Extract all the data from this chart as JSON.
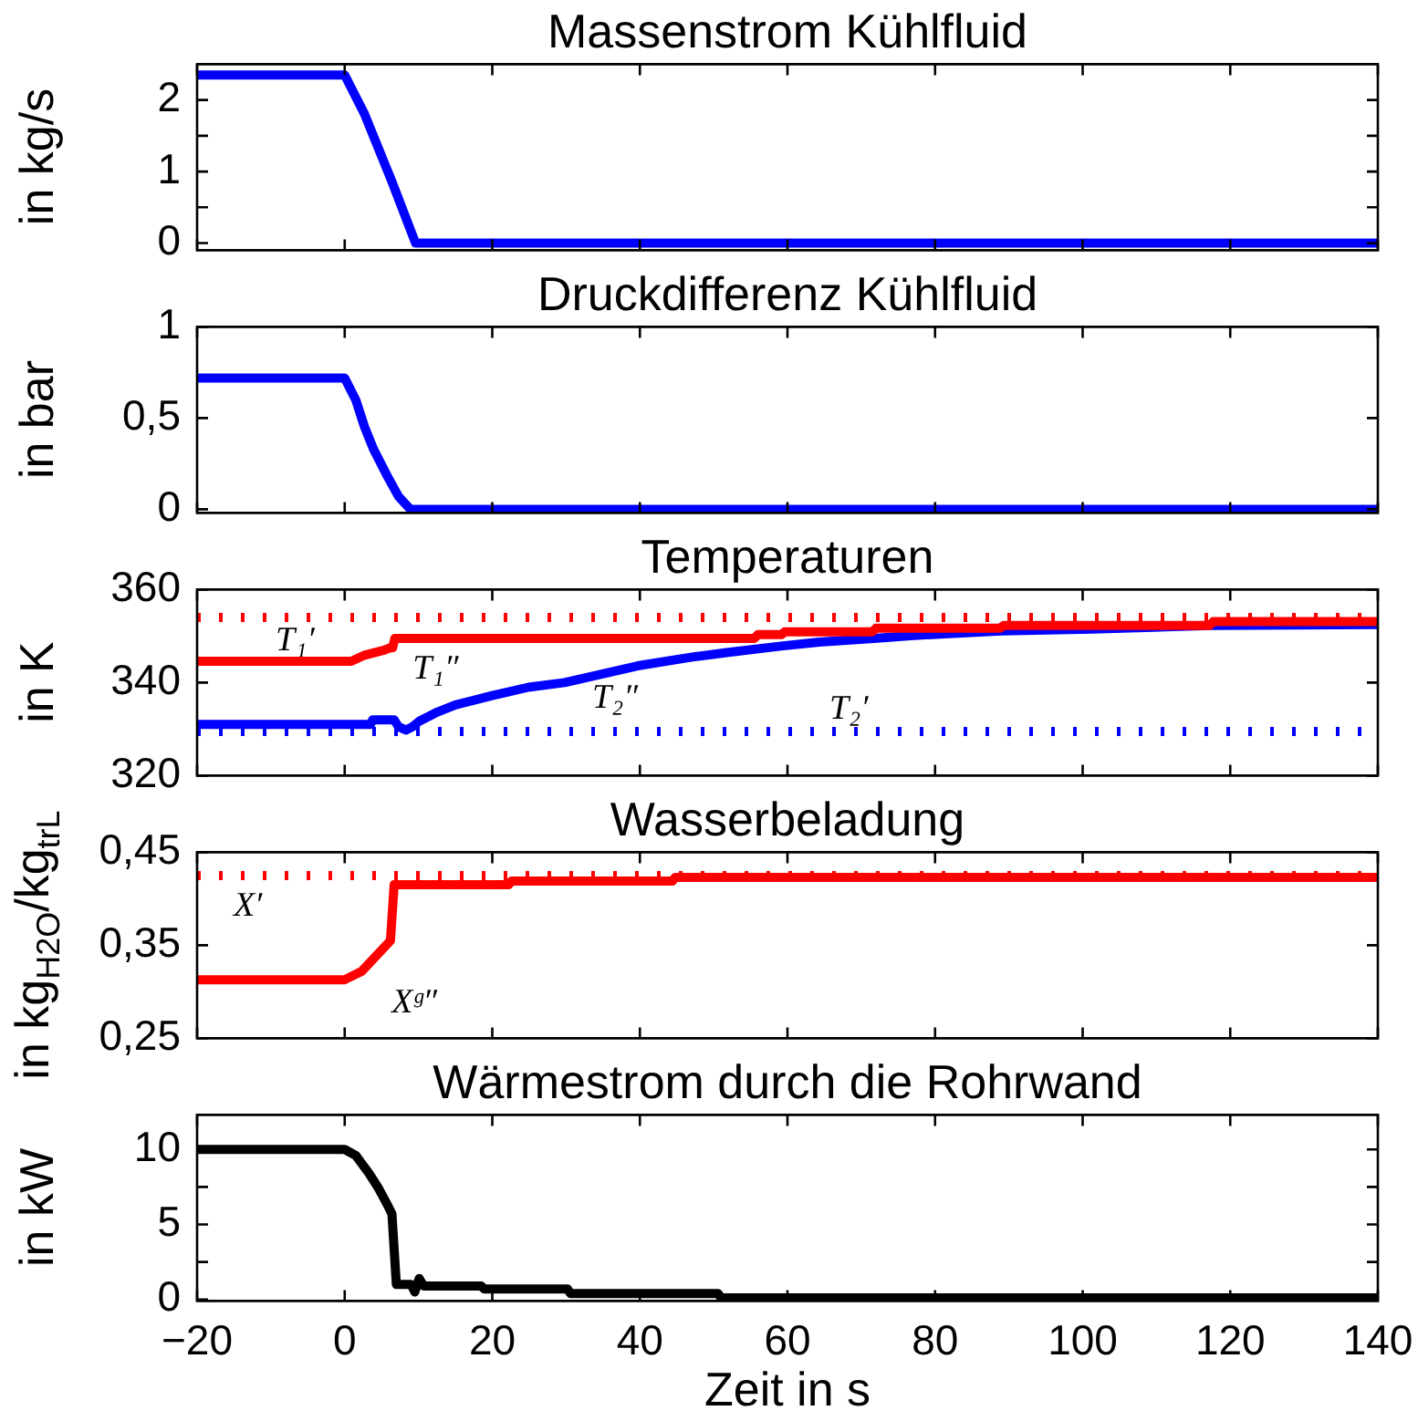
{
  "chart_data": [
    {
      "type": "line",
      "title": "Massenstrom Kühlfluid",
      "ylabel": "in kg/s",
      "series": [
        {
          "color": "#0000ff",
          "x": [
            -20,
            0,
            2.7,
            6.4,
            9.6,
            140
          ],
          "values": [
            2.35,
            2.35,
            1.8,
            0.86,
            0,
            0
          ]
        }
      ],
      "xlim": [
        -20,
        140
      ],
      "xticks": [
        -20,
        0,
        20,
        40,
        60,
        80,
        100,
        120,
        140
      ],
      "ylim": [
        -0.1,
        2.5
      ],
      "yticks": [
        0,
        {
          "value": 0.5,
          "label": null
        },
        1,
        {
          "value": 1.5,
          "label": null
        },
        2
      ],
      "tick_labels": "y"
    },
    {
      "type": "line",
      "title": "Druckdifferenz Kühlfluid",
      "ylabel": "in bar",
      "series": [
        {
          "color": "#0000ff",
          "x": [
            -20,
            0,
            1.5,
            2.7,
            3.9,
            5.8,
            7.3,
            8.9,
            140
          ],
          "values": [
            0.72,
            0.72,
            0.6,
            0.45,
            0.33,
            0.18,
            0.07,
            0,
            0
          ]
        }
      ],
      "xlim": [
        -20,
        140
      ],
      "xticks": [
        -20,
        0,
        20,
        40,
        60,
        80,
        100,
        120,
        140
      ],
      "ylim": [
        -0.02,
        1
      ],
      "yticks": [
        0,
        {
          "value": 0.5,
          "label": "0,5"
        },
        1
      ],
      "tick_labels": "y"
    },
    {
      "type": "line",
      "title": "Temperaturen",
      "ylabel": "in K",
      "series": [
        {
          "name": "T₁″",
          "color": "#ff0000",
          "x": [
            -20,
            0.9,
            2.7,
            5.2,
            6.2,
            6.5,
            6.8,
            55.5,
            56,
            59.2,
            59.6,
            71.5,
            72,
            88.8,
            89.3,
            117.2,
            117.7,
            140
          ],
          "values": [
            344.6,
            344.6,
            345.9,
            346.9,
            347.5,
            347.5,
            349.5,
            349.5,
            350.3,
            350.3,
            350.9,
            350.9,
            351.7,
            351.7,
            352.3,
            352.3,
            353.1,
            353.1
          ]
        },
        {
          "name": "T₂″",
          "color": "#0000ff",
          "x": [
            -20,
            3.5,
            3.8,
            6.7,
            7.3,
            8.3,
            9.2,
            10.1,
            12.6,
            15,
            20,
            24.9,
            29.8,
            39.7,
            47.1,
            52,
            59.4,
            64.3,
            71.7,
            76.7,
            89,
            101.3,
            117.4,
            140
          ],
          "values": [
            331,
            331,
            332,
            332,
            330.5,
            329.8,
            330.5,
            331.7,
            333.7,
            335.2,
            337.2,
            339,
            340,
            343.6,
            345.5,
            346.5,
            347.9,
            348.7,
            349.5,
            350.1,
            351.1,
            351.5,
            352.3,
            352.5
          ]
        }
      ],
      "xlim": [
        -20,
        140
      ],
      "xticks": [
        -20,
        0,
        20,
        40,
        60,
        80,
        100,
        120,
        140
      ],
      "ylim": [
        320,
        360
      ],
      "yticks": [
        320,
        340,
        360
      ],
      "tick_labels": "y",
      "ref_lines": [
        {
          "axis": "y",
          "value": 354,
          "label": "T₁′",
          "color": "#ff0000",
          "line_style": "dotted"
        },
        {
          "axis": "y",
          "value": 329.5,
          "label": "T₂′",
          "color": "#0000ff",
          "line_style": "dotted"
        }
      ]
    },
    {
      "type": "line",
      "title": "Wasserbeladung",
      "ylabel": "in kg$_{H2O}$/kg$_{trL}$",
      "series": [
        {
          "name": "Xᵍ″",
          "color": "#ff0000",
          "x": [
            -20,
            0,
            2.3,
            6.2,
            6.7,
            22.2,
            22.6,
            44.4,
            44.8,
            140
          ],
          "values": [
            0.313,
            0.313,
            0.322,
            0.355,
            0.415,
            0.415,
            0.419,
            0.419,
            0.423,
            0.423
          ]
        }
      ],
      "xlim": [
        -20,
        140
      ],
      "xticks": [
        -20,
        0,
        20,
        40,
        60,
        80,
        100,
        120,
        140
      ],
      "ylim": [
        0.25,
        0.45
      ],
      "yticks": [
        {
          "value": 0.25,
          "label": "0,25"
        },
        {
          "value": 0.35,
          "label": "0,35"
        },
        {
          "value": 0.45,
          "label": "0,45"
        }
      ],
      "tick_labels": "y",
      "ref_lines": [
        {
          "axis": "y",
          "value": 0.425,
          "label": "X′",
          "color": "#ff0000",
          "line_style": "dotted"
        }
      ]
    },
    {
      "type": "line",
      "title": "Wärmestrom durch die Rohrwand",
      "xlabel": "Zeit in s",
      "ylabel": "in kW",
      "series": [
        {
          "color": "#000000",
          "x": [
            -20,
            0,
            1.5,
            3.3,
            4.6,
            5.8,
            6.4,
            7,
            9,
            9.5,
            10.1,
            10.7,
            18.5,
            18.9,
            30.2,
            30.6,
            50.6,
            51,
            140
          ],
          "values": [
            10,
            10,
            9.6,
            8.4,
            7.4,
            6.3,
            5.7,
            1,
            1,
            0.5,
            1.4,
            0.9,
            0.9,
            0.7,
            0.7,
            0.4,
            0.4,
            0.1,
            0.1
          ]
        }
      ],
      "xlim": [
        -20,
        140
      ],
      "xticks": [
        {
          "value": -20,
          "label": "−20"
        },
        0,
        20,
        40,
        60,
        80,
        100,
        120,
        140
      ],
      "ylim": [
        -0.1,
        12.3
      ],
      "yticks": [
        0,
        {
          "value": 2.5,
          "label": null
        },
        5,
        {
          "value": 7.5,
          "label": null
        },
        10
      ]
    }
  ]
}
